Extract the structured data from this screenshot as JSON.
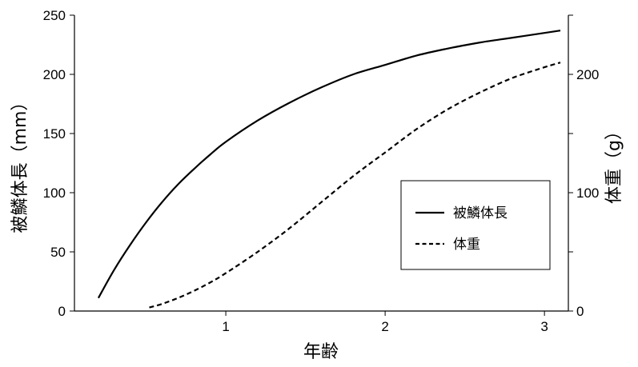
{
  "chart_data": {
    "type": "line",
    "xlabel": "年齢",
    "ylabel_left": "被鱗体長（mm）",
    "ylabel_right": "体重（g）",
    "xlim": [
      0.05,
      3.15
    ],
    "ylim_left": [
      0,
      250
    ],
    "ylim_right": [
      0,
      250
    ],
    "x_ticks": [
      1,
      2,
      3
    ],
    "y_ticks_left": [
      0,
      50,
      100,
      150,
      200,
      250
    ],
    "y_ticks_right": [
      0,
      100,
      200
    ],
    "y_minor_ticks_right": [
      50,
      150,
      250
    ],
    "legend_position": "center-right",
    "series": [
      {
        "name": "被鱗体長",
        "axis": "left",
        "style": "solid",
        "x": [
          0.2,
          0.3,
          0.4,
          0.5,
          0.6,
          0.7,
          0.8,
          0.9,
          1.0,
          1.2,
          1.4,
          1.6,
          1.8,
          2.0,
          2.2,
          2.4,
          2.6,
          2.8,
          3.0,
          3.1
        ],
        "values": [
          11,
          35,
          56,
          75,
          92,
          107,
          120,
          132,
          143,
          161,
          176,
          189,
          200,
          208,
          216,
          222,
          227,
          231,
          235,
          237
        ]
      },
      {
        "name": "体重",
        "axis": "right",
        "style": "dashed",
        "x": [
          0.52,
          0.6,
          0.7,
          0.8,
          0.9,
          1.0,
          1.2,
          1.4,
          1.6,
          1.8,
          2.0,
          2.2,
          2.4,
          2.6,
          2.8,
          3.0,
          3.1
        ],
        "values": [
          3,
          6,
          11,
          17,
          24,
          32,
          50,
          70,
          92,
          114,
          134,
          154,
          171,
          185,
          197,
          206,
          210
        ]
      }
    ]
  }
}
